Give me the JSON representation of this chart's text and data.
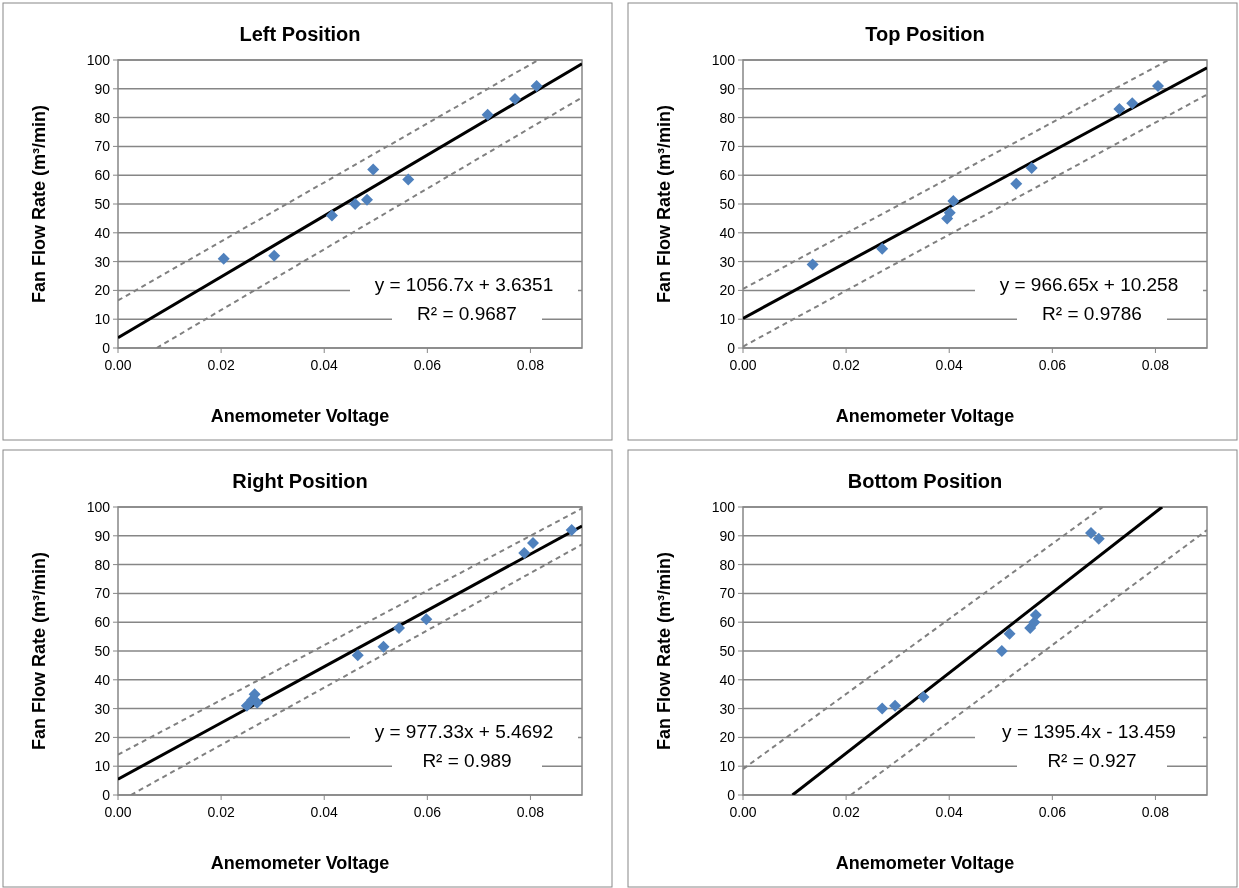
{
  "chart_data": [
    {
      "type": "scatter",
      "title": "Left Position",
      "xlabel": "Anemometer Voltage",
      "ylabel": "Fan Flow Rate (m³/min)",
      "xlim": [
        0,
        0.09
      ],
      "ylim": [
        0,
        100
      ],
      "xticks": [
        {
          "value": 0,
          "label": "0.00"
        },
        {
          "value": 0.02,
          "label": "0.02"
        },
        {
          "value": 0.04,
          "label": "0.04"
        },
        {
          "value": 0.06,
          "label": "0.06"
        },
        {
          "value": 0.08,
          "label": "0.08"
        }
      ],
      "yticks": [
        0,
        10,
        20,
        30,
        40,
        50,
        60,
        70,
        80,
        90,
        100
      ],
      "grid": "y",
      "annotations": [
        "y = 1056.7x + 3.6351",
        "R² = 0.9687"
      ],
      "series": [
        {
          "marker": "diamond",
          "color": "#4f81bd",
          "x": [
            0.0205,
            0.0303,
            0.0415,
            0.046,
            0.0483,
            0.0495,
            0.0563,
            0.0717,
            0.077,
            0.0812
          ],
          "values": [
            31,
            32,
            46,
            50,
            51.5,
            62,
            58.5,
            81,
            86.5,
            91
          ]
        },
        {
          "type": "line",
          "color": "#000000",
          "line_style": "solid",
          "x": [
            0,
            0.09
          ],
          "values": [
            3.6,
            98.7
          ]
        },
        {
          "type": "line",
          "color": "#808080",
          "line_style": "dashed",
          "x": [
            0,
            0.0815
          ],
          "values": [
            16.5,
            100
          ]
        },
        {
          "type": "line",
          "color": "#808080",
          "line_style": "dashed",
          "x": [
            0.0075,
            0.09
          ],
          "values": [
            0,
            87
          ]
        }
      ]
    },
    {
      "type": "scatter",
      "title": "Top Position",
      "xlabel": "Anemometer Voltage",
      "ylabel": "Fan Flow Rate (m³/min)",
      "xlim": [
        0,
        0.09
      ],
      "ylim": [
        0,
        100
      ],
      "xticks": [
        {
          "value": 0,
          "label": "0.00"
        },
        {
          "value": 0.02,
          "label": "0.02"
        },
        {
          "value": 0.04,
          "label": "0.04"
        },
        {
          "value": 0.06,
          "label": "0.06"
        },
        {
          "value": 0.08,
          "label": "0.08"
        }
      ],
      "yticks": [
        0,
        10,
        20,
        30,
        40,
        50,
        60,
        70,
        80,
        90,
        100
      ],
      "grid": "y",
      "annotations": [
        "y = 966.65x + 10.258",
        "R² = 0.9786"
      ],
      "series": [
        {
          "marker": "diamond",
          "color": "#4f81bd",
          "x": [
            0.0135,
            0.027,
            0.0396,
            0.0401,
            0.0408,
            0.053,
            0.056,
            0.073,
            0.0755,
            0.0805
          ],
          "values": [
            29,
            34.5,
            45,
            47,
            51,
            57,
            62.5,
            83,
            85,
            91
          ]
        },
        {
          "type": "line",
          "color": "#000000",
          "line_style": "solid",
          "x": [
            0,
            0.09
          ],
          "values": [
            10.3,
            97.3
          ]
        },
        {
          "type": "line",
          "color": "#808080",
          "line_style": "dashed",
          "x": [
            0,
            0.0825
          ],
          "values": [
            20.5,
            100
          ]
        },
        {
          "type": "line",
          "color": "#808080",
          "line_style": "dashed",
          "x": [
            0,
            0.09
          ],
          "values": [
            0.5,
            88
          ]
        }
      ]
    },
    {
      "type": "scatter",
      "title": "Right Position",
      "xlabel": "Anemometer Voltage",
      "ylabel": "Fan Flow Rate (m³/min)",
      "xlim": [
        0,
        0.09
      ],
      "ylim": [
        0,
        100
      ],
      "xticks": [
        {
          "value": 0,
          "label": "0.00"
        },
        {
          "value": 0.02,
          "label": "0.02"
        },
        {
          "value": 0.04,
          "label": "0.04"
        },
        {
          "value": 0.06,
          "label": "0.06"
        },
        {
          "value": 0.08,
          "label": "0.08"
        }
      ],
      "yticks": [
        0,
        10,
        20,
        30,
        40,
        50,
        60,
        70,
        80,
        90,
        100
      ],
      "grid": "y",
      "annotations": [
        "y = 977.33x + 5.4692",
        "R² = 0.989"
      ],
      "series": [
        {
          "marker": "diamond",
          "color": "#4f81bd",
          "x": [
            0.025,
            0.026,
            0.0265,
            0.027,
            0.0465,
            0.0515,
            0.0545,
            0.0598,
            0.0788,
            0.0805,
            0.088
          ],
          "values": [
            31,
            33,
            35,
            32,
            48.5,
            51.5,
            58,
            61,
            84,
            87.5,
            92
          ]
        },
        {
          "type": "line",
          "color": "#000000",
          "line_style": "solid",
          "x": [
            0,
            0.09
          ],
          "values": [
            5.5,
            93.4
          ]
        },
        {
          "type": "line",
          "color": "#808080",
          "line_style": "dashed",
          "x": [
            0,
            0.09
          ],
          "values": [
            14,
            99.5
          ]
        },
        {
          "type": "line",
          "color": "#808080",
          "line_style": "dashed",
          "x": [
            0.0025,
            0.09
          ],
          "values": [
            0,
            87
          ]
        }
      ]
    },
    {
      "type": "scatter",
      "title": "Bottom Position",
      "xlabel": "Anemometer Voltage",
      "ylabel": "Fan Flow Rate (m³/min)",
      "xlim": [
        0,
        0.09
      ],
      "ylim": [
        0,
        100
      ],
      "xticks": [
        {
          "value": 0,
          "label": "0.00"
        },
        {
          "value": 0.02,
          "label": "0.02"
        },
        {
          "value": 0.04,
          "label": "0.04"
        },
        {
          "value": 0.06,
          "label": "0.06"
        },
        {
          "value": 0.08,
          "label": "0.08"
        }
      ],
      "yticks": [
        0,
        10,
        20,
        30,
        40,
        50,
        60,
        70,
        80,
        90,
        100
      ],
      "grid": "y",
      "annotations": [
        "y = 1395.4x - 13.459",
        "R² = 0.927"
      ],
      "series": [
        {
          "marker": "diamond",
          "color": "#4f81bd",
          "x": [
            0.027,
            0.0295,
            0.035,
            0.0502,
            0.0517,
            0.0557,
            0.0565,
            0.0568,
            0.0675,
            0.069
          ],
          "values": [
            30,
            31,
            34,
            50,
            56,
            58,
            60,
            62.5,
            91,
            89
          ]
        },
        {
          "type": "line",
          "color": "#000000",
          "line_style": "solid",
          "x": [
            0.0096,
            0.0813
          ],
          "values": [
            0,
            100
          ]
        },
        {
          "type": "line",
          "color": "#808080",
          "line_style": "dashed",
          "x": [
            0,
            0.0698
          ],
          "values": [
            9,
            100
          ]
        },
        {
          "type": "line",
          "color": "#808080",
          "line_style": "dashed",
          "x": [
            0.0209,
            0.09
          ],
          "values": [
            0,
            92
          ]
        }
      ]
    }
  ]
}
